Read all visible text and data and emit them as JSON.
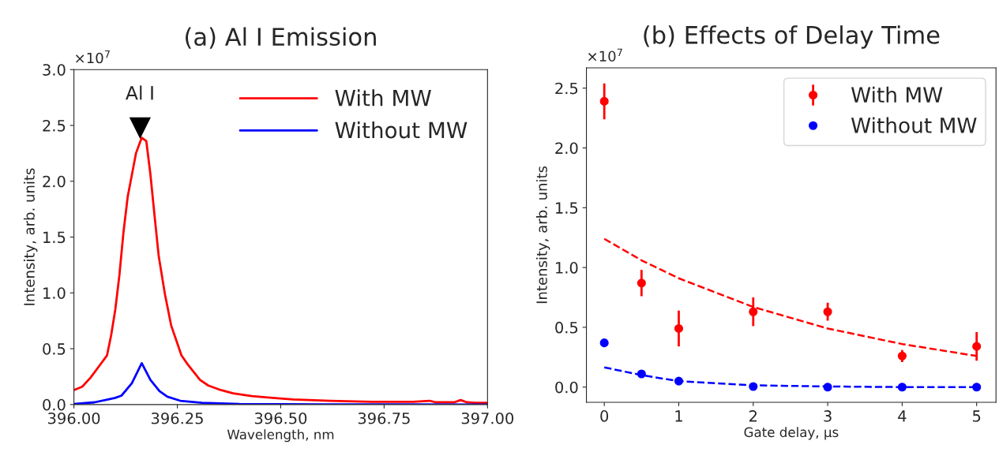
{
  "chart_data": [
    {
      "type": "line",
      "title": "(a) Al I Emission",
      "xlabel": "Wavelength, nm",
      "ylabel": "Intensity, arb. units",
      "xlim": [
        396.0,
        397.0
      ],
      "xticks": [
        {
          "value": 396.0,
          "label": "396.00"
        },
        396.25,
        {
          "value": 396.5,
          "label": "396.50"
        },
        396.75,
        {
          "value": 397.0,
          "label": "397.00"
        }
      ],
      "ylim": [
        0.0,
        3.0
      ],
      "yticks": [
        {
          "value": 0,
          "label": "0.0"
        },
        0.5,
        {
          "value": 1,
          "label": "1.0"
        },
        1.5,
        {
          "value": 2,
          "label": "2.0"
        },
        2.5,
        {
          "value": 3,
          "label": "3.0"
        }
      ],
      "annotations": [
        "×10$^{7}$",
        {
          "text": "Al I",
          "x": 396.16,
          "y": 2.48
        }
      ],
      "legend": "top right",
      "grid": false,
      "series": [
        {
          "name": "With MW",
          "color": "#ff0000",
          "x": [
            396.0,
            396.02,
            396.04,
            396.06,
            396.08,
            396.09,
            396.1,
            396.11,
            396.12,
            396.13,
            396.15,
            396.164,
            396.175,
            396.185,
            396.195,
            396.205,
            396.22,
            396.235,
            396.26,
            396.275,
            396.305,
            396.325,
            396.355,
            396.385,
            396.43,
            396.48,
            396.53,
            396.62,
            396.72,
            396.82,
            396.86,
            396.875,
            396.92,
            396.935,
            396.95,
            396.97,
            397.0
          ],
          "values": [
            0.13,
            0.16,
            0.24,
            0.34,
            0.44,
            0.62,
            0.85,
            1.16,
            1.55,
            1.86,
            2.25,
            2.39,
            2.36,
            2.06,
            1.69,
            1.33,
            0.99,
            0.71,
            0.44,
            0.36,
            0.22,
            0.17,
            0.13,
            0.1,
            0.076,
            0.06,
            0.045,
            0.034,
            0.025,
            0.025,
            0.034,
            0.02,
            0.02,
            0.04,
            0.02,
            0.015,
            0.015
          ]
        },
        {
          "name": "Without MW",
          "color": "#0000ff",
          "x": [
            396.0,
            396.05,
            396.1,
            396.115,
            396.14,
            396.164,
            396.185,
            396.207,
            396.226,
            396.257,
            396.31,
            396.4,
            396.6,
            397.0
          ],
          "values": [
            0.005,
            0.02,
            0.06,
            0.08,
            0.19,
            0.37,
            0.22,
            0.12,
            0.07,
            0.034,
            0.015,
            0.005,
            0.002,
            0.0
          ]
        }
      ]
    },
    {
      "type": "scatter",
      "title": "(b) Effects of Delay Time",
      "xlabel": "Gate delay, μs",
      "ylabel": "Intensity, arb. units",
      "xlim": [
        -0.24,
        5.26
      ],
      "xticks": [
        0,
        1,
        2,
        3,
        4,
        5
      ],
      "ylim": [
        -0.127,
        2.67
      ],
      "yticks": [
        {
          "value": 0,
          "label": "0.0"
        },
        0.5,
        {
          "value": 1,
          "label": "1.0"
        },
        1.5,
        {
          "value": 2,
          "label": "2.0"
        },
        2.5
      ],
      "annotations": [
        "×10$^{7}$"
      ],
      "legend": "top right",
      "grid": false,
      "series": [
        {
          "name": "With MW",
          "marker": "circle",
          "color": "#ff0000",
          "x": [
            0,
            0.5,
            1,
            2,
            3,
            4,
            5
          ],
          "values": [
            2.39,
            0.87,
            0.49,
            0.63,
            0.63,
            0.26,
            0.34
          ],
          "errors": [
            0.15,
            0.11,
            0.15,
            0.12,
            0.075,
            0.05,
            0.12
          ]
        },
        {
          "name": "Without MW",
          "marker": "circle",
          "color": "#0000ff",
          "x": [
            0,
            0.5,
            1,
            2,
            3,
            4,
            5
          ],
          "values": [
            0.37,
            0.11,
            0.05,
            0.005,
            0.0,
            0.0,
            0.0
          ]
        },
        {
          "type": "line",
          "line_style": "dashed",
          "color": "#ff0000",
          "x": [
            0,
            0.5,
            1,
            2,
            3,
            4,
            5
          ],
          "values": [
            1.24,
            1.06,
            0.91,
            0.67,
            0.49,
            0.36,
            0.26
          ]
        },
        {
          "type": "line",
          "line_style": "dashed",
          "color": "#0000ff",
          "x": [
            0,
            0.5,
            1,
            2,
            3,
            4,
            5
          ],
          "values": [
            0.165,
            0.1,
            0.05,
            0.015,
            0.005,
            0.0,
            0.0
          ]
        }
      ]
    }
  ]
}
